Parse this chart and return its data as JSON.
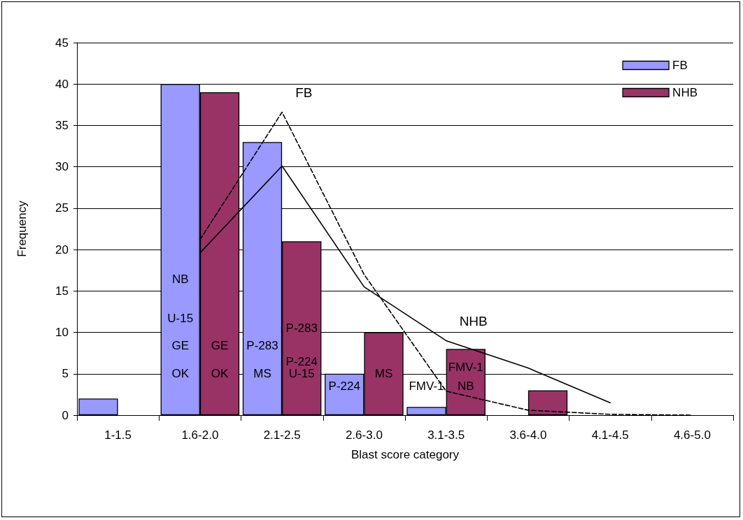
{
  "chart_data": {
    "type": "bar",
    "xlabel": "Blast score category",
    "ylabel": "Frequency",
    "categories": [
      "1-1.5",
      "1.6-2.0",
      "2.1-2.5",
      "2.6-3.0",
      "3.1-3.5",
      "3.6-4.0",
      "4.1-4.5",
      "4.6-5.0"
    ],
    "ylim": [
      0,
      45
    ],
    "yticks": [
      0,
      5,
      10,
      15,
      20,
      25,
      30,
      35,
      40,
      45
    ],
    "grid": "y",
    "legend": "top right",
    "series": [
      {
        "name": "FB",
        "color": "#9999ff",
        "values": [
          2,
          40,
          33,
          5,
          1,
          0,
          0,
          0
        ]
      },
      {
        "name": "NHB",
        "color": "#993366",
        "values": [
          0,
          39,
          21,
          10,
          8,
          3,
          0,
          0
        ]
      },
      {
        "type": "line",
        "name": "FB",
        "color": "#000000",
        "line_style": "dashed",
        "marker": "none",
        "values": [
          null,
          21.2,
          36.6,
          17,
          2.9,
          0.6,
          0.1,
          0
        ]
      },
      {
        "type": "line",
        "name": "NHB",
        "color": "#000000",
        "line_style": "solid",
        "marker": "none",
        "values": [
          null,
          19.6,
          30.1,
          15.5,
          9,
          5.7,
          1.5,
          null
        ]
      }
    ],
    "annotations": [
      {
        "text": "NB",
        "x": "1.6-2.0",
        "y": 16.4
      },
      {
        "text": "U-15",
        "x": "1.6-2.0",
        "y": 11.7
      },
      {
        "text": "GE",
        "x": "1.6-2.0",
        "y": 8.4
      },
      {
        "text": "OK",
        "x": "1.6-2.0",
        "y": 5
      },
      {
        "text": "GE",
        "x": "1.6-2.0",
        "y": 8.4
      },
      {
        "text": "OK",
        "x": "1.6-2.0",
        "y": 5
      },
      {
        "text": "P-283",
        "x": "2.1-2.5",
        "y": 8.4
      },
      {
        "text": "MS",
        "x": "2.1-2.5",
        "y": 5
      },
      {
        "text": "P-283",
        "x": "2.1-2.5",
        "y": 10.5
      },
      {
        "text": "P-224",
        "x": "2.1-2.5",
        "y": 6.5
      },
      {
        "text": "U-15",
        "x": "2.1-2.5",
        "y": 5
      },
      {
        "text": "P-224",
        "x": "2.6-3.0",
        "y": 3.5
      },
      {
        "text": "MS",
        "x": "2.6-3.0",
        "y": 5
      },
      {
        "text": "FMV-1",
        "x": "3.1-3.5",
        "y": 3.5
      },
      {
        "text": "FMV-1",
        "x": "3.1-3.5",
        "y": 5.8
      },
      {
        "text": "NB",
        "x": "3.1-3.5",
        "y": 3.5
      }
    ]
  }
}
